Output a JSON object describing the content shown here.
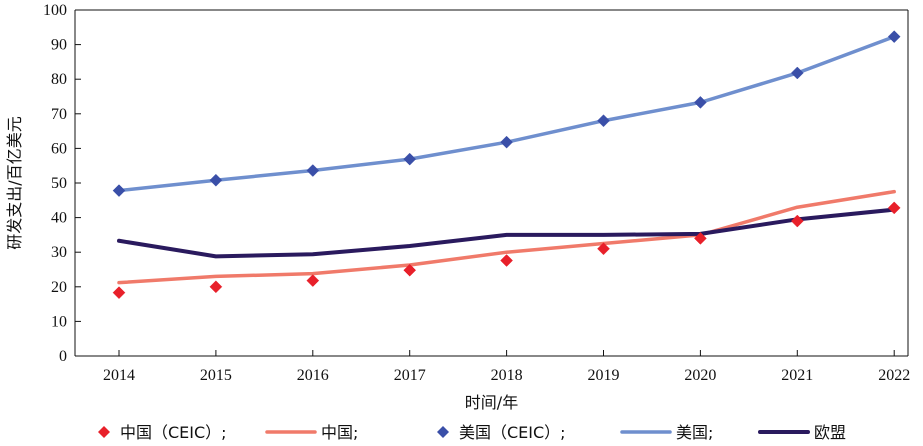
{
  "chart_data": {
    "type": "line",
    "xlabel": "时间/年",
    "ylabel": "研发支出/百亿美元",
    "ylim": [
      0,
      100
    ],
    "yticks": [
      0,
      10,
      20,
      30,
      40,
      50,
      60,
      70,
      80,
      90,
      100
    ],
    "categories": [
      "2014",
      "2015",
      "2016",
      "2017",
      "2018",
      "2019",
      "2020",
      "2021",
      "2022"
    ],
    "grid": false,
    "legend_position": "bottom",
    "series": [
      {
        "name": "中国（CEIC）;",
        "kind": "marker",
        "marker": "diamond",
        "color": "#e8202a",
        "values": [
          18.3,
          20.0,
          21.8,
          24.8,
          27.6,
          31.0,
          34.0,
          39.0,
          42.8
        ]
      },
      {
        "name": "中国;",
        "kind": "line",
        "color": "#f07a6a",
        "values": [
          21.2,
          23.0,
          23.8,
          26.3,
          30.0,
          32.5,
          35.0,
          43.0,
          47.5
        ]
      },
      {
        "name": "美国（CEIC）;",
        "kind": "marker",
        "marker": "diamond",
        "color": "#3a4fa8",
        "values": [
          47.8,
          50.8,
          53.6,
          56.9,
          61.8,
          68.0,
          73.3,
          81.8,
          92.3
        ]
      },
      {
        "name": "美国;",
        "kind": "line",
        "color": "#6f8fce",
        "values": [
          47.8,
          50.8,
          53.6,
          56.9,
          61.8,
          68.0,
          73.3,
          81.8,
          92.3
        ]
      },
      {
        "name": "欧盟",
        "kind": "line",
        "color": "#2a1a5e",
        "values": [
          33.3,
          28.8,
          29.4,
          31.8,
          35.0,
          35.0,
          35.3,
          39.5,
          42.3
        ]
      }
    ]
  }
}
